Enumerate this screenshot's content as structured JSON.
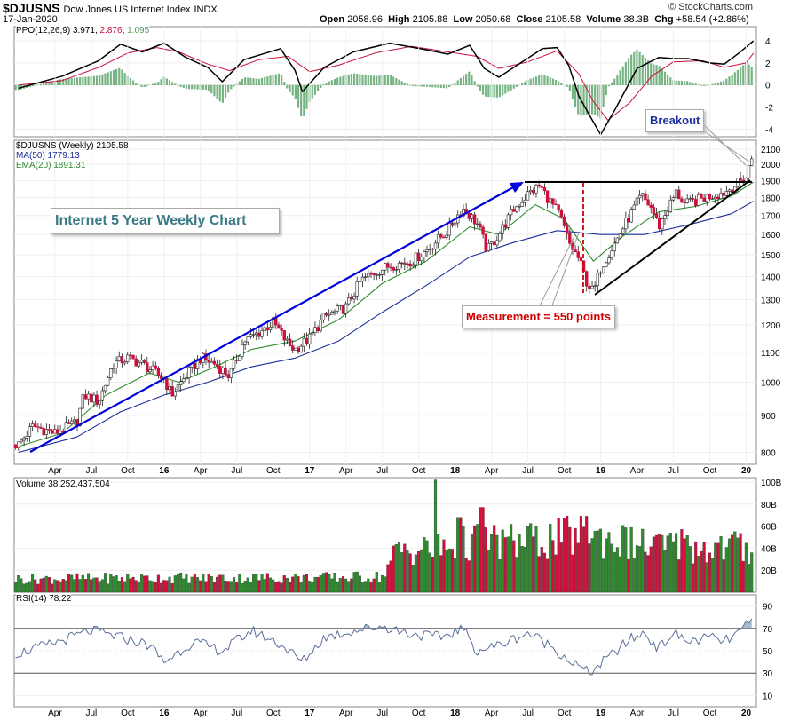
{
  "header": {
    "symbol": "$DJUSNS",
    "name": "Dow Jones US Internet Index",
    "exchange": "INDX",
    "date": "17-Jan-2020",
    "open_label": "Open",
    "open": "2058.96",
    "high_label": "High",
    "high": "2105.88",
    "low_label": "Low",
    "low": "2050.68",
    "close_label": "Close",
    "close": "2105.58",
    "volume_label": "Volume",
    "volume": "38.3B",
    "chg_label": "Chg",
    "chg": "+58.54 (+2.86%)",
    "copyright": "© StockCharts.com"
  },
  "annotations": {
    "title": "Internet 5 Year Weekly Chart",
    "measurement": "Measurement = 550 points",
    "breakout": "Breakout"
  },
  "colors": {
    "up": "#2e8b2e",
    "down": "#d0103a",
    "ma50": "#1c2f9a",
    "ema20": "#2e8b2e",
    "ppo": "#000000",
    "signal": "#c8103a",
    "hist": "#4a9a5a",
    "rsi": "#5a6f9a",
    "trend_blue": "#0000dd",
    "measure_red": "#d00000"
  },
  "chart_data": [
    {
      "panel": "ppo",
      "type": "line",
      "legend": "PPO(12,26,9)",
      "values": [
        "3.971",
        "2.876",
        "1.095"
      ],
      "yticks": [
        4,
        2,
        0,
        -2,
        -4
      ],
      "ylim": [
        -4.7,
        5.3
      ],
      "ppo_points": [
        [
          2015.0,
          -0.3
        ],
        [
          2015.3,
          0.8
        ],
        [
          2015.55,
          2.2
        ],
        [
          2015.7,
          3.7
        ],
        [
          2015.85,
          3.0
        ],
        [
          2016.0,
          3.8
        ],
        [
          2016.15,
          2.5
        ],
        [
          2016.3,
          1.6
        ],
        [
          2016.4,
          0.3
        ],
        [
          2016.55,
          2.3
        ],
        [
          2016.8,
          3.3
        ],
        [
          2016.9,
          1.3
        ],
        [
          2016.95,
          -0.6
        ],
        [
          2017.1,
          1.6
        ],
        [
          2017.3,
          3.0
        ],
        [
          2017.55,
          3.8
        ],
        [
          2017.8,
          3.2
        ],
        [
          2017.95,
          2.8
        ],
        [
          2018.1,
          3.6
        ],
        [
          2018.2,
          1.5
        ],
        [
          2018.3,
          0.7
        ],
        [
          2018.45,
          2.0
        ],
        [
          2018.6,
          3.3
        ],
        [
          2018.7,
          3.4
        ],
        [
          2018.78,
          1.8
        ],
        [
          2018.85,
          -1.0
        ],
        [
          2018.93,
          -2.9
        ],
        [
          2019.0,
          -4.5
        ],
        [
          2019.1,
          -2.2
        ],
        [
          2019.25,
          1.5
        ],
        [
          2019.4,
          2.5
        ],
        [
          2019.5,
          2.4
        ],
        [
          2019.6,
          2.4
        ],
        [
          2019.75,
          2.0
        ],
        [
          2019.85,
          1.9
        ],
        [
          2019.95,
          2.9
        ],
        [
          2020.05,
          4.0
        ]
      ],
      "signal_points": [
        [
          2015.0,
          0.0
        ],
        [
          2015.3,
          0.4
        ],
        [
          2015.55,
          1.6
        ],
        [
          2015.75,
          2.9
        ],
        [
          2015.95,
          3.4
        ],
        [
          2016.1,
          3.0
        ],
        [
          2016.3,
          1.9
        ],
        [
          2016.45,
          1.3
        ],
        [
          2016.65,
          2.3
        ],
        [
          2016.85,
          2.6
        ],
        [
          2017.0,
          1.2
        ],
        [
          2017.2,
          1.8
        ],
        [
          2017.45,
          2.9
        ],
        [
          2017.7,
          3.5
        ],
        [
          2017.95,
          3.0
        ],
        [
          2018.15,
          2.6
        ],
        [
          2018.3,
          1.5
        ],
        [
          2018.5,
          2.1
        ],
        [
          2018.7,
          3.1
        ],
        [
          2018.85,
          1.0
        ],
        [
          2018.95,
          -1.5
        ],
        [
          2019.05,
          -3.2
        ],
        [
          2019.2,
          -1.6
        ],
        [
          2019.35,
          0.8
        ],
        [
          2019.5,
          2.1
        ],
        [
          2019.7,
          2.2
        ],
        [
          2019.85,
          1.6
        ],
        [
          2020.0,
          2.0
        ],
        [
          2020.05,
          2.9
        ]
      ]
    },
    {
      "panel": "price",
      "type": "candlestick",
      "legend": [
        "$DJUSNS (Weekly) 2105.58",
        "MA(50) 1779.13",
        "EMA(20) 1891.31"
      ],
      "scale": "log",
      "yticks": [
        2100,
        2000,
        1900,
        1800,
        1700,
        1600,
        1500,
        1400,
        1300,
        1200,
        1100,
        1000,
        900,
        800
      ],
      "xticks": [
        {
          "x": 2015.25,
          "label": "Apr"
        },
        {
          "x": 2015.5,
          "label": "Jul"
        },
        {
          "x": 2015.75,
          "label": "Oct"
        },
        {
          "x": 2016.0,
          "label": "16",
          "bold": true
        },
        {
          "x": 2016.25,
          "label": "Apr"
        },
        {
          "x": 2016.5,
          "label": "Jul"
        },
        {
          "x": 2016.75,
          "label": "Oct"
        },
        {
          "x": 2017.0,
          "label": "17",
          "bold": true
        },
        {
          "x": 2017.25,
          "label": "Apr"
        },
        {
          "x": 2017.5,
          "label": "Jul"
        },
        {
          "x": 2017.75,
          "label": "Oct"
        },
        {
          "x": 2018.0,
          "label": "18",
          "bold": true
        },
        {
          "x": 2018.25,
          "label": "Apr"
        },
        {
          "x": 2018.5,
          "label": "Jul"
        },
        {
          "x": 2018.75,
          "label": "Oct"
        },
        {
          "x": 2019.0,
          "label": "19",
          "bold": true
        },
        {
          "x": 2019.25,
          "label": "Apr"
        },
        {
          "x": 2019.5,
          "label": "Jul"
        },
        {
          "x": 2019.75,
          "label": "Oct"
        },
        {
          "x": 2020.0,
          "label": "20",
          "bold": true
        }
      ],
      "close_points": [
        [
          2015.0,
          820
        ],
        [
          2015.1,
          870
        ],
        [
          2015.25,
          850
        ],
        [
          2015.4,
          880
        ],
        [
          2015.45,
          960
        ],
        [
          2015.55,
          940
        ],
        [
          2015.65,
          1060
        ],
        [
          2015.75,
          1080
        ],
        [
          2015.85,
          1060
        ],
        [
          2016.0,
          1010
        ],
        [
          2016.05,
          960
        ],
        [
          2016.15,
          1020
        ],
        [
          2016.25,
          1080
        ],
        [
          2016.35,
          1060
        ],
        [
          2016.45,
          1020
        ],
        [
          2016.55,
          1140
        ],
        [
          2016.65,
          1170
        ],
        [
          2016.75,
          1210
        ],
        [
          2016.85,
          1130
        ],
        [
          2016.9,
          1110
        ],
        [
          2017.0,
          1150
        ],
        [
          2017.1,
          1230
        ],
        [
          2017.25,
          1270
        ],
        [
          2017.35,
          1380
        ],
        [
          2017.45,
          1420
        ],
        [
          2017.55,
          1450
        ],
        [
          2017.7,
          1470
        ],
        [
          2017.8,
          1520
        ],
        [
          2017.95,
          1620
        ],
        [
          2018.05,
          1740
        ],
        [
          2018.15,
          1660
        ],
        [
          2018.22,
          1520
        ],
        [
          2018.3,
          1600
        ],
        [
          2018.4,
          1730
        ],
        [
          2018.5,
          1820
        ],
        [
          2018.58,
          1870
        ],
        [
          2018.65,
          1780
        ],
        [
          2018.72,
          1700
        ],
        [
          2018.78,
          1560
        ],
        [
          2018.85,
          1480
        ],
        [
          2018.9,
          1380
        ],
        [
          2018.95,
          1330
        ],
        [
          2019.0,
          1440
        ],
        [
          2019.1,
          1560
        ],
        [
          2019.2,
          1700
        ],
        [
          2019.28,
          1810
        ],
        [
          2019.35,
          1740
        ],
        [
          2019.4,
          1640
        ],
        [
          2019.45,
          1720
        ],
        [
          2019.52,
          1830
        ],
        [
          2019.58,
          1760
        ],
        [
          2019.65,
          1780
        ],
        [
          2019.75,
          1810
        ],
        [
          2019.85,
          1830
        ],
        [
          2019.95,
          1890
        ],
        [
          2020.0,
          1920
        ],
        [
          2020.04,
          2050
        ],
        [
          2020.05,
          2105.58
        ]
      ],
      "ma50_points": [
        [
          2015.0,
          800
        ],
        [
          2015.4,
          840
        ],
        [
          2015.7,
          910
        ],
        [
          2016.0,
          960
        ],
        [
          2016.3,
          1000
        ],
        [
          2016.6,
          1050
        ],
        [
          2016.9,
          1080
        ],
        [
          2017.2,
          1140
        ],
        [
          2017.5,
          1250
        ],
        [
          2017.8,
          1360
        ],
        [
          2018.1,
          1490
        ],
        [
          2018.4,
          1560
        ],
        [
          2018.7,
          1620
        ],
        [
          2019.0,
          1600
        ],
        [
          2019.3,
          1600
        ],
        [
          2019.6,
          1650
        ],
        [
          2019.9,
          1710
        ],
        [
          2020.05,
          1779.13
        ]
      ],
      "ema20_points": [
        [
          2015.0,
          815
        ],
        [
          2015.3,
          850
        ],
        [
          2015.6,
          960
        ],
        [
          2015.9,
          1030
        ],
        [
          2016.1,
          1000
        ],
        [
          2016.35,
          1050
        ],
        [
          2016.6,
          1110
        ],
        [
          2016.9,
          1140
        ],
        [
          2017.2,
          1220
        ],
        [
          2017.5,
          1370
        ],
        [
          2017.8,
          1470
        ],
        [
          2018.1,
          1640
        ],
        [
          2018.3,
          1600
        ],
        [
          2018.55,
          1760
        ],
        [
          2018.75,
          1680
        ],
        [
          2018.95,
          1470
        ],
        [
          2019.15,
          1590
        ],
        [
          2019.4,
          1720
        ],
        [
          2019.65,
          1750
        ],
        [
          2019.9,
          1810
        ],
        [
          2020.05,
          1891.31
        ]
      ]
    },
    {
      "panel": "volume",
      "type": "bar",
      "legend": "Volume 38,252,437,504",
      "ytick_labels": [
        "100B",
        "80B",
        "60B",
        "40B",
        "20B"
      ],
      "yticks": [
        100,
        80,
        60,
        40,
        20
      ],
      "unit": "B",
      "ylim": [
        0,
        104
      ],
      "level_points": [
        [
          2015.0,
          12
        ],
        [
          2016.0,
          13
        ],
        [
          2017.0,
          13
        ],
        [
          2017.5,
          14
        ],
        [
          2017.6,
          38
        ],
        [
          2018.0,
          40
        ],
        [
          2018.1,
          46
        ],
        [
          2018.5,
          45
        ],
        [
          2018.9,
          52
        ],
        [
          2019.3,
          42
        ],
        [
          2019.9,
          40
        ],
        [
          2020.05,
          38.25
        ]
      ],
      "spikes": [
        [
          2017.86,
          102
        ],
        [
          2018.03,
          68
        ],
        [
          2018.18,
          77
        ],
        [
          2018.5,
          60
        ],
        [
          2018.82,
          58
        ],
        [
          2018.91,
          69
        ],
        [
          2019.55,
          57
        ],
        [
          2019.92,
          55
        ]
      ]
    },
    {
      "panel": "rsi",
      "type": "line",
      "legend": "RSI(14) 78.22",
      "yticks": [
        90,
        70,
        50,
        30,
        10
      ],
      "ylim": [
        0,
        100
      ],
      "points": [
        [
          2015.0,
          48
        ],
        [
          2015.2,
          55
        ],
        [
          2015.5,
          68
        ],
        [
          2015.7,
          62
        ],
        [
          2015.9,
          55
        ],
        [
          2016.0,
          40
        ],
        [
          2016.2,
          58
        ],
        [
          2016.4,
          50
        ],
        [
          2016.6,
          68
        ],
        [
          2016.8,
          56
        ],
        [
          2016.95,
          40
        ],
        [
          2017.1,
          62
        ],
        [
          2017.3,
          68
        ],
        [
          2017.5,
          72
        ],
        [
          2017.7,
          65
        ],
        [
          2017.9,
          62
        ],
        [
          2018.05,
          70
        ],
        [
          2018.15,
          50
        ],
        [
          2018.3,
          55
        ],
        [
          2018.5,
          66
        ],
        [
          2018.65,
          55
        ],
        [
          2018.8,
          40
        ],
        [
          2018.92,
          30
        ],
        [
          2019.0,
          38
        ],
        [
          2019.2,
          60
        ],
        [
          2019.3,
          66
        ],
        [
          2019.4,
          52
        ],
        [
          2019.5,
          66
        ],
        [
          2019.6,
          58
        ],
        [
          2019.75,
          62
        ],
        [
          2019.85,
          58
        ],
        [
          2019.95,
          66
        ],
        [
          2020.05,
          78.22
        ]
      ]
    }
  ]
}
